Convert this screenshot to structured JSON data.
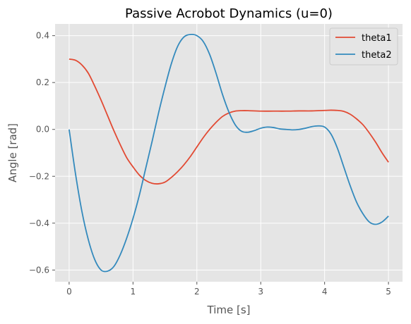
{
  "chart_data": {
    "type": "line",
    "title": "Passive Acrobot Dynamics (u=0)",
    "xlabel": "Time [s]",
    "ylabel": "Angle [rad]",
    "xlim": [
      -0.22,
      5.22
    ],
    "ylim": [
      -0.65,
      0.45
    ],
    "xticks": [
      0,
      1,
      2,
      3,
      4,
      5
    ],
    "yticks": [
      -0.6,
      -0.4,
      -0.2,
      0.0,
      0.2,
      0.4
    ],
    "xtick_labels": [
      "0",
      "1",
      "2",
      "3",
      "4",
      "5"
    ],
    "ytick_labels": [
      "−0.6",
      "−0.4",
      "−0.2",
      "0.0",
      "0.2",
      "0.4"
    ],
    "grid": true,
    "legend_position": "top-right",
    "series": [
      {
        "name": "theta1",
        "color": "#e24a33",
        "x": [
          0,
          0.1,
          0.2,
          0.3,
          0.4,
          0.5,
          0.6,
          0.7,
          0.8,
          0.9,
          1.0,
          1.1,
          1.2,
          1.3,
          1.4,
          1.5,
          1.6,
          1.7,
          1.8,
          1.9,
          2.0,
          2.1,
          2.2,
          2.3,
          2.4,
          2.5,
          2.6,
          2.7,
          2.8,
          3.0,
          3.2,
          3.4,
          3.6,
          3.8,
          4.0,
          4.1,
          4.2,
          4.3,
          4.4,
          4.5,
          4.6,
          4.7,
          4.8,
          4.9,
          5.0
        ],
        "y": [
          0.3,
          0.295,
          0.275,
          0.24,
          0.185,
          0.125,
          0.06,
          -0.005,
          -0.065,
          -0.12,
          -0.16,
          -0.195,
          -0.218,
          -0.23,
          -0.232,
          -0.225,
          -0.205,
          -0.18,
          -0.15,
          -0.115,
          -0.075,
          -0.035,
          0.0,
          0.03,
          0.055,
          0.07,
          0.078,
          0.08,
          0.08,
          0.078,
          0.078,
          0.078,
          0.079,
          0.079,
          0.081,
          0.082,
          0.081,
          0.077,
          0.065,
          0.045,
          0.02,
          -0.015,
          -0.055,
          -0.1,
          -0.14
        ]
      },
      {
        "name": "theta2",
        "color": "#348abd",
        "x": [
          0,
          0.1,
          0.2,
          0.3,
          0.4,
          0.5,
          0.6,
          0.7,
          0.8,
          0.9,
          1.0,
          1.1,
          1.2,
          1.3,
          1.4,
          1.5,
          1.6,
          1.7,
          1.8,
          1.9,
          2.0,
          2.1,
          2.2,
          2.3,
          2.4,
          2.5,
          2.6,
          2.7,
          2.8,
          2.9,
          3.0,
          3.1,
          3.2,
          3.3,
          3.4,
          3.5,
          3.6,
          3.7,
          3.8,
          3.9,
          4.0,
          4.1,
          4.2,
          4.3,
          4.4,
          4.5,
          4.6,
          4.7,
          4.8,
          4.9,
          5.0
        ],
        "y": [
          0.0,
          -0.19,
          -0.35,
          -0.47,
          -0.555,
          -0.6,
          -0.605,
          -0.585,
          -0.535,
          -0.465,
          -0.38,
          -0.28,
          -0.165,
          -0.05,
          0.07,
          0.18,
          0.28,
          0.355,
          0.395,
          0.405,
          0.4,
          0.375,
          0.32,
          0.24,
          0.15,
          0.075,
          0.02,
          -0.008,
          -0.012,
          -0.005,
          0.005,
          0.01,
          0.008,
          0.002,
          0.0,
          -0.002,
          0.0,
          0.005,
          0.012,
          0.015,
          0.01,
          -0.02,
          -0.08,
          -0.16,
          -0.24,
          -0.31,
          -0.36,
          -0.395,
          -0.405,
          -0.395,
          -0.37
        ]
      }
    ]
  }
}
